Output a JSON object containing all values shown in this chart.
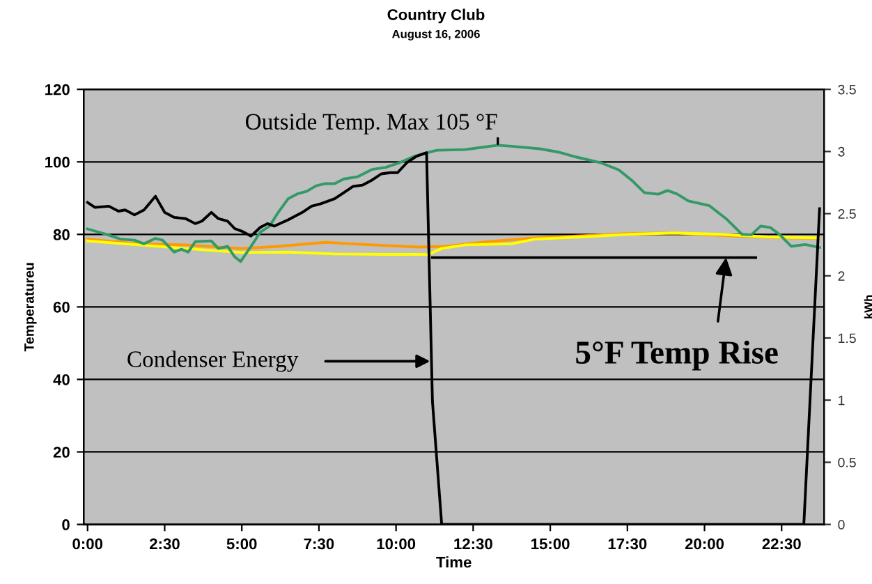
{
  "chart_data": {
    "type": "line",
    "title": "Country Club",
    "subtitle": "August 16, 2006",
    "xlabel": "Time",
    "ylabel": "Temperatureu",
    "y2label": "kWh",
    "xlim": [
      -0.125,
      23.875
    ],
    "xticks": [
      {
        "value": 0,
        "label": "0:00"
      },
      {
        "value": 2.5,
        "label": "2:30"
      },
      {
        "value": 5,
        "label": "5:00"
      },
      {
        "value": 7.5,
        "label": "7:30"
      },
      {
        "value": 10,
        "label": "10:00"
      },
      {
        "value": 12.5,
        "label": "12:30"
      },
      {
        "value": 15,
        "label": "15:00"
      },
      {
        "value": 17.5,
        "label": "17:30"
      },
      {
        "value": 20,
        "label": "20:00"
      },
      {
        "value": 22.5,
        "label": "22:30"
      }
    ],
    "ylim": [
      0,
      120
    ],
    "yticks": [
      0,
      20,
      40,
      60,
      80,
      100,
      120
    ],
    "y2lim": [
      0,
      3.5
    ],
    "y2ticks": [
      0,
      0.5,
      1,
      1.5,
      2,
      2.5,
      3,
      3.5
    ],
    "grid": "y",
    "marker": "none",
    "line_style": "solid",
    "series": [
      {
        "color": "#ff9900",
        "x": [
          0,
          1.67,
          3.18,
          4.99,
          6.2,
          7.71,
          9.22,
          10.73,
          11.63,
          12.99,
          14.5,
          16.0,
          17.52,
          19.03,
          20.54,
          22.05,
          23.7
        ],
        "values": [
          78.7,
          77.4,
          77.1,
          76.1,
          76.7,
          77.8,
          77.1,
          76.5,
          76.7,
          78.0,
          79.0,
          79.6,
          80.2,
          80.4,
          79.7,
          79.2,
          78.9
        ]
      },
      {
        "color": "#ffff00",
        "x": [
          0,
          1.67,
          3.18,
          4.99,
          6.5,
          8.01,
          9.52,
          10.88,
          11.03,
          11.48,
          12.24,
          13.75,
          14.5,
          16.0,
          17.52,
          19.03,
          20.54,
          22.05,
          23.7
        ],
        "values": [
          78.2,
          77.1,
          76.1,
          75.0,
          75.1,
          74.6,
          74.5,
          74.5,
          74.4,
          76.1,
          77.1,
          77.4,
          78.7,
          79.3,
          80.0,
          80.4,
          80.0,
          79.3,
          79.0
        ]
      },
      {
        "color": "#339966",
        "x": [
          0,
          0.62,
          1.07,
          1.52,
          1.83,
          2.2,
          2.43,
          2.81,
          3.04,
          3.26,
          3.49,
          4.01,
          4.24,
          4.54,
          4.77,
          4.96,
          5.3,
          5.6,
          5.9,
          6.2,
          6.5,
          6.81,
          7.11,
          7.41,
          7.71,
          8.01,
          8.31,
          8.76,
          9.22,
          9.67,
          10.12,
          10.58,
          11.03,
          11.33,
          12.24,
          12.69,
          13.3,
          13.75,
          14.66,
          15.26,
          15.86,
          16.62,
          17.22,
          17.67,
          18.05,
          18.5,
          18.8,
          19.1,
          19.48,
          20.16,
          20.69,
          21.22,
          21.52,
          21.82,
          22.13,
          22.43,
          22.81,
          23.26,
          23.73
        ],
        "values": [
          81.5,
          80.0,
          78.7,
          78.4,
          77.4,
          78.9,
          78.4,
          75.1,
          75.9,
          75.1,
          78.0,
          78.2,
          76.1,
          76.7,
          73.8,
          72.5,
          76.7,
          80.6,
          82.3,
          86.3,
          89.8,
          91.2,
          91.9,
          93.4,
          94.0,
          94.0,
          95.3,
          95.9,
          97.9,
          98.5,
          99.8,
          101.5,
          102.6,
          103.2,
          103.4,
          103.9,
          104.6,
          104.3,
          103.6,
          102.7,
          101.3,
          99.8,
          97.8,
          94.7,
          91.5,
          91.1,
          92.1,
          91.2,
          89.2,
          87.9,
          84.4,
          80.0,
          79.9,
          82.3,
          81.9,
          80.0,
          76.7,
          77.2,
          76.4
        ]
      },
      {
        "color": "#000000",
        "axis": "y2",
        "x": [
          0,
          0.24,
          0.69,
          1.0,
          1.22,
          1.52,
          1.83,
          2.0,
          2.2,
          2.5,
          2.81,
          3.18,
          3.49,
          3.71,
          4.01,
          4.24,
          4.54,
          4.77,
          4.99,
          5.3,
          5.6,
          5.83,
          6.05,
          6.5,
          6.96,
          7.26,
          7.56,
          8.01,
          8.31,
          8.61,
          8.92,
          9.22,
          9.52,
          9.82,
          10.05,
          10.35,
          10.65,
          10.99,
          11.18,
          11.48,
          23.22,
          23.73
        ],
        "values": [
          2.59,
          2.55,
          2.56,
          2.52,
          2.53,
          2.49,
          2.53,
          2.58,
          2.64,
          2.51,
          2.47,
          2.46,
          2.42,
          2.44,
          2.51,
          2.46,
          2.44,
          2.38,
          2.36,
          2.32,
          2.39,
          2.42,
          2.4,
          2.45,
          2.51,
          2.56,
          2.58,
          2.62,
          2.67,
          2.72,
          2.73,
          2.77,
          2.82,
          2.83,
          2.83,
          2.91,
          2.96,
          2.99,
          0.99,
          0,
          0,
          2.54
        ]
      },
      {
        "color": "#000000",
        "x": [
          11.18,
          21.66
        ],
        "values": [
          73.6,
          73.6
        ]
      }
    ],
    "annotations": [
      {
        "text": "Outside Temp. Max 105 °F",
        "x": 13.3,
        "y": 105
      },
      "Condenser Energy",
      {
        "text": "5°F Temp Rise",
        "x": 20.7,
        "y": 73.6
      }
    ]
  }
}
